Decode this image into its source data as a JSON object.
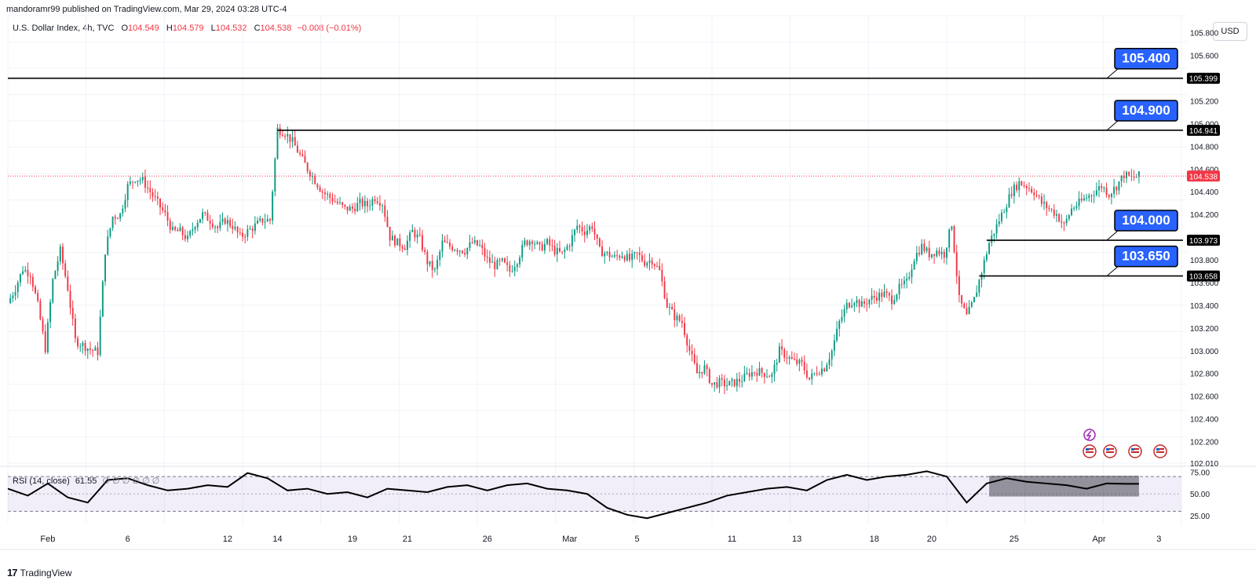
{
  "header": {
    "credit": "mandoramr99 published on TradingView.com, Mar 29, 2024 03:28 UTC-4",
    "symbol": "U.S. Dollar Index, 4h, TVC",
    "open_label": "O",
    "open": "104.549",
    "high_label": "H",
    "high": "104.579",
    "low_label": "L",
    "low": "104.532",
    "close_label": "C",
    "close": "104.538",
    "change": "−0.008 (−0.01%)",
    "currency": "USD"
  },
  "footer": {
    "brand": "TradingView",
    "brand_mark": "17"
  },
  "colors": {
    "up": "#089981",
    "down": "#f23645",
    "line": "#000000",
    "callout": "#2962ff",
    "rsi_band": "#7e57c2"
  },
  "chart_data": [
    {
      "type": "candlestick",
      "title": "U.S. Dollar Index, 4h, TVC",
      "ylim": [
        102.01,
        105.95
      ],
      "y_ticks": [
        "105.800",
        "105.600",
        "105.200",
        "105.000",
        "104.800",
        "104.600",
        "104.400",
        "104.200",
        "103.800",
        "103.600",
        "103.400",
        "103.200",
        "103.000",
        "102.800",
        "102.600",
        "102.400",
        "102.200",
        "102.010"
      ],
      "x_ticks": [
        "Feb",
        "6",
        "12",
        "14",
        "19",
        "21",
        "26",
        "Mar",
        "5",
        "11",
        "13",
        "18",
        "20",
        "25",
        "Apr",
        "3"
      ],
      "last_price": "104.538",
      "horizontal_levels": [
        {
          "price": 105.399,
          "label": "105.399",
          "callout": "105.400",
          "from": "start"
        },
        {
          "price": 104.941,
          "label": "104.941",
          "callout": "104.900",
          "from": "Feb 13"
        },
        {
          "price": 103.973,
          "label": "103.973",
          "callout": "104.000",
          "from": "Mar 22"
        },
        {
          "price": 103.658,
          "label": "103.658",
          "callout": "103.650",
          "from": "Mar 21"
        }
      ],
      "close_path": [
        [
          0,
          103.42
        ],
        [
          3,
          103.55
        ],
        [
          6,
          103.72
        ],
        [
          9,
          103.68
        ],
        [
          12,
          103.4
        ],
        [
          15,
          103.02
        ],
        [
          18,
          103.62
        ],
        [
          21,
          103.88
        ],
        [
          24,
          103.55
        ],
        [
          27,
          103.09
        ],
        [
          30,
          103.05
        ],
        [
          33,
          103.01
        ],
        [
          36,
          102.99
        ],
        [
          39,
          103.88
        ],
        [
          42,
          104.18
        ],
        [
          45,
          104.2
        ],
        [
          48,
          104.45
        ],
        [
          51,
          104.52
        ],
        [
          54,
          104.5
        ],
        [
          57,
          104.4
        ],
        [
          60,
          104.3
        ],
        [
          63,
          104.2
        ],
        [
          66,
          104.05
        ],
        [
          69,
          104.05
        ],
        [
          72,
          103.98
        ],
        [
          75,
          104.12
        ],
        [
          78,
          104.2
        ],
        [
          81,
          104.15
        ],
        [
          84,
          104.08
        ],
        [
          87,
          104.15
        ],
        [
          90,
          104.1
        ],
        [
          93,
          104.0
        ],
        [
          96,
          104.05
        ],
        [
          99,
          104.1
        ],
        [
          102,
          104.15
        ],
        [
          105,
          104.15
        ],
        [
          108,
          104.95
        ],
        [
          111,
          104.92
        ],
        [
          114,
          104.84
        ],
        [
          117,
          104.72
        ],
        [
          120,
          104.6
        ],
        [
          123,
          104.5
        ],
        [
          126,
          104.4
        ],
        [
          129,
          104.35
        ],
        [
          132,
          104.3
        ],
        [
          135,
          104.25
        ],
        [
          138,
          104.25
        ],
        [
          141,
          104.3
        ],
        [
          144,
          104.28
        ],
        [
          147,
          104.35
        ],
        [
          150,
          104.3
        ],
        [
          153,
          104.0
        ],
        [
          156,
          103.95
        ],
        [
          159,
          103.92
        ],
        [
          162,
          104.05
        ],
        [
          165,
          103.98
        ],
        [
          168,
          103.78
        ],
        [
          171,
          103.7
        ],
        [
          174,
          103.95
        ],
        [
          177,
          103.92
        ],
        [
          180,
          103.9
        ],
        [
          183,
          103.88
        ],
        [
          186,
          103.95
        ],
        [
          189,
          103.92
        ],
        [
          192,
          103.8
        ],
        [
          195,
          103.75
        ],
        [
          198,
          103.78
        ],
        [
          201,
          103.7
        ],
        [
          204,
          103.8
        ],
        [
          207,
          103.95
        ],
        [
          210,
          103.98
        ],
        [
          213,
          103.9
        ],
        [
          216,
          103.95
        ],
        [
          219,
          103.88
        ],
        [
          222,
          103.85
        ],
        [
          225,
          103.95
        ],
        [
          228,
          104.1
        ],
        [
          231,
          104.05
        ],
        [
          234,
          104.1
        ],
        [
          237,
          103.88
        ],
        [
          240,
          103.85
        ],
        [
          243,
          103.82
        ],
        [
          246,
          103.85
        ],
        [
          249,
          103.8
        ],
        [
          252,
          103.85
        ],
        [
          255,
          103.78
        ],
        [
          258,
          103.8
        ],
        [
          261,
          103.7
        ],
        [
          264,
          103.4
        ],
        [
          267,
          103.3
        ],
        [
          270,
          103.25
        ],
        [
          273,
          103.0
        ],
        [
          276,
          102.8
        ],
        [
          279,
          102.85
        ],
        [
          282,
          102.7
        ],
        [
          285,
          102.72
        ],
        [
          288,
          102.7
        ],
        [
          291,
          102.72
        ],
        [
          294,
          102.75
        ],
        [
          297,
          102.8
        ],
        [
          300,
          102.82
        ],
        [
          303,
          102.8
        ],
        [
          306,
          102.78
        ],
        [
          309,
          103.0
        ],
        [
          312,
          102.95
        ],
        [
          315,
          102.9
        ],
        [
          318,
          102.88
        ],
        [
          321,
          102.75
        ],
        [
          324,
          102.82
        ],
        [
          327,
          102.85
        ],
        [
          330,
          103.0
        ],
        [
          333,
          103.25
        ],
        [
          336,
          103.4
        ],
        [
          339,
          103.45
        ],
        [
          342,
          103.4
        ],
        [
          345,
          103.45
        ],
        [
          348,
          103.48
        ],
        [
          351,
          103.5
        ],
        [
          354,
          103.45
        ],
        [
          357,
          103.55
        ],
        [
          360,
          103.6
        ],
        [
          363,
          103.82
        ],
        [
          366,
          103.92
        ],
        [
          369,
          103.85
        ],
        [
          372,
          103.88
        ],
        [
          375,
          103.85
        ],
        [
          378,
          104.12
        ],
        [
          381,
          103.45
        ],
        [
          384,
          103.3
        ],
        [
          387,
          103.45
        ],
        [
          390,
          103.7
        ],
        [
          393,
          103.95
        ],
        [
          396,
          104.1
        ],
        [
          399,
          104.25
        ],
        [
          402,
          104.4
        ],
        [
          405,
          104.48
        ],
        [
          408,
          104.45
        ],
        [
          411,
          104.4
        ],
        [
          414,
          104.3
        ],
        [
          417,
          104.25
        ],
        [
          420,
          104.2
        ],
        [
          423,
          104.1
        ],
        [
          426,
          104.25
        ],
        [
          429,
          104.3
        ],
        [
          432,
          104.35
        ],
        [
          435,
          104.4
        ],
        [
          438,
          104.45
        ],
        [
          441,
          104.38
        ],
        [
          444,
          104.45
        ],
        [
          447,
          104.55
        ],
        [
          450,
          104.52
        ],
        [
          453,
          104.54
        ]
      ]
    },
    {
      "type": "line",
      "title": "RSI (14, close)",
      "value": "61.55",
      "extras": "∅ ∅ ∅ ∅ ∅ ∅",
      "ylim": [
        15,
        80
      ],
      "y_ticks": [
        "75.00",
        "50.00",
        "25.00"
      ],
      "upper_band": 70,
      "middle": 50,
      "lower_band": 30,
      "x": [
        0,
        8,
        16,
        24,
        32,
        40,
        48,
        56,
        64,
        72,
        80,
        88,
        96,
        104,
        112,
        120,
        128,
        136,
        144,
        152,
        160,
        168,
        176,
        184,
        192,
        200,
        208,
        216,
        224,
        232,
        240,
        248,
        256,
        264,
        272,
        280,
        288,
        296,
        304,
        312,
        320,
        328,
        336,
        344,
        352,
        360,
        368,
        376,
        384,
        392,
        400,
        408,
        416,
        424,
        432,
        440,
        448,
        453
      ],
      "y": [
        56,
        48,
        62,
        46,
        40,
        66,
        68,
        60,
        54,
        56,
        60,
        58,
        74,
        68,
        54,
        56,
        50,
        52,
        46,
        56,
        54,
        52,
        58,
        60,
        54,
        60,
        62,
        56,
        54,
        50,
        34,
        26,
        22,
        28,
        34,
        40,
        48,
        52,
        56,
        58,
        54,
        66,
        72,
        66,
        70,
        72,
        76,
        70,
        40,
        62,
        68,
        64,
        62,
        60,
        56,
        62,
        61.55,
        61.55
      ]
    }
  ]
}
